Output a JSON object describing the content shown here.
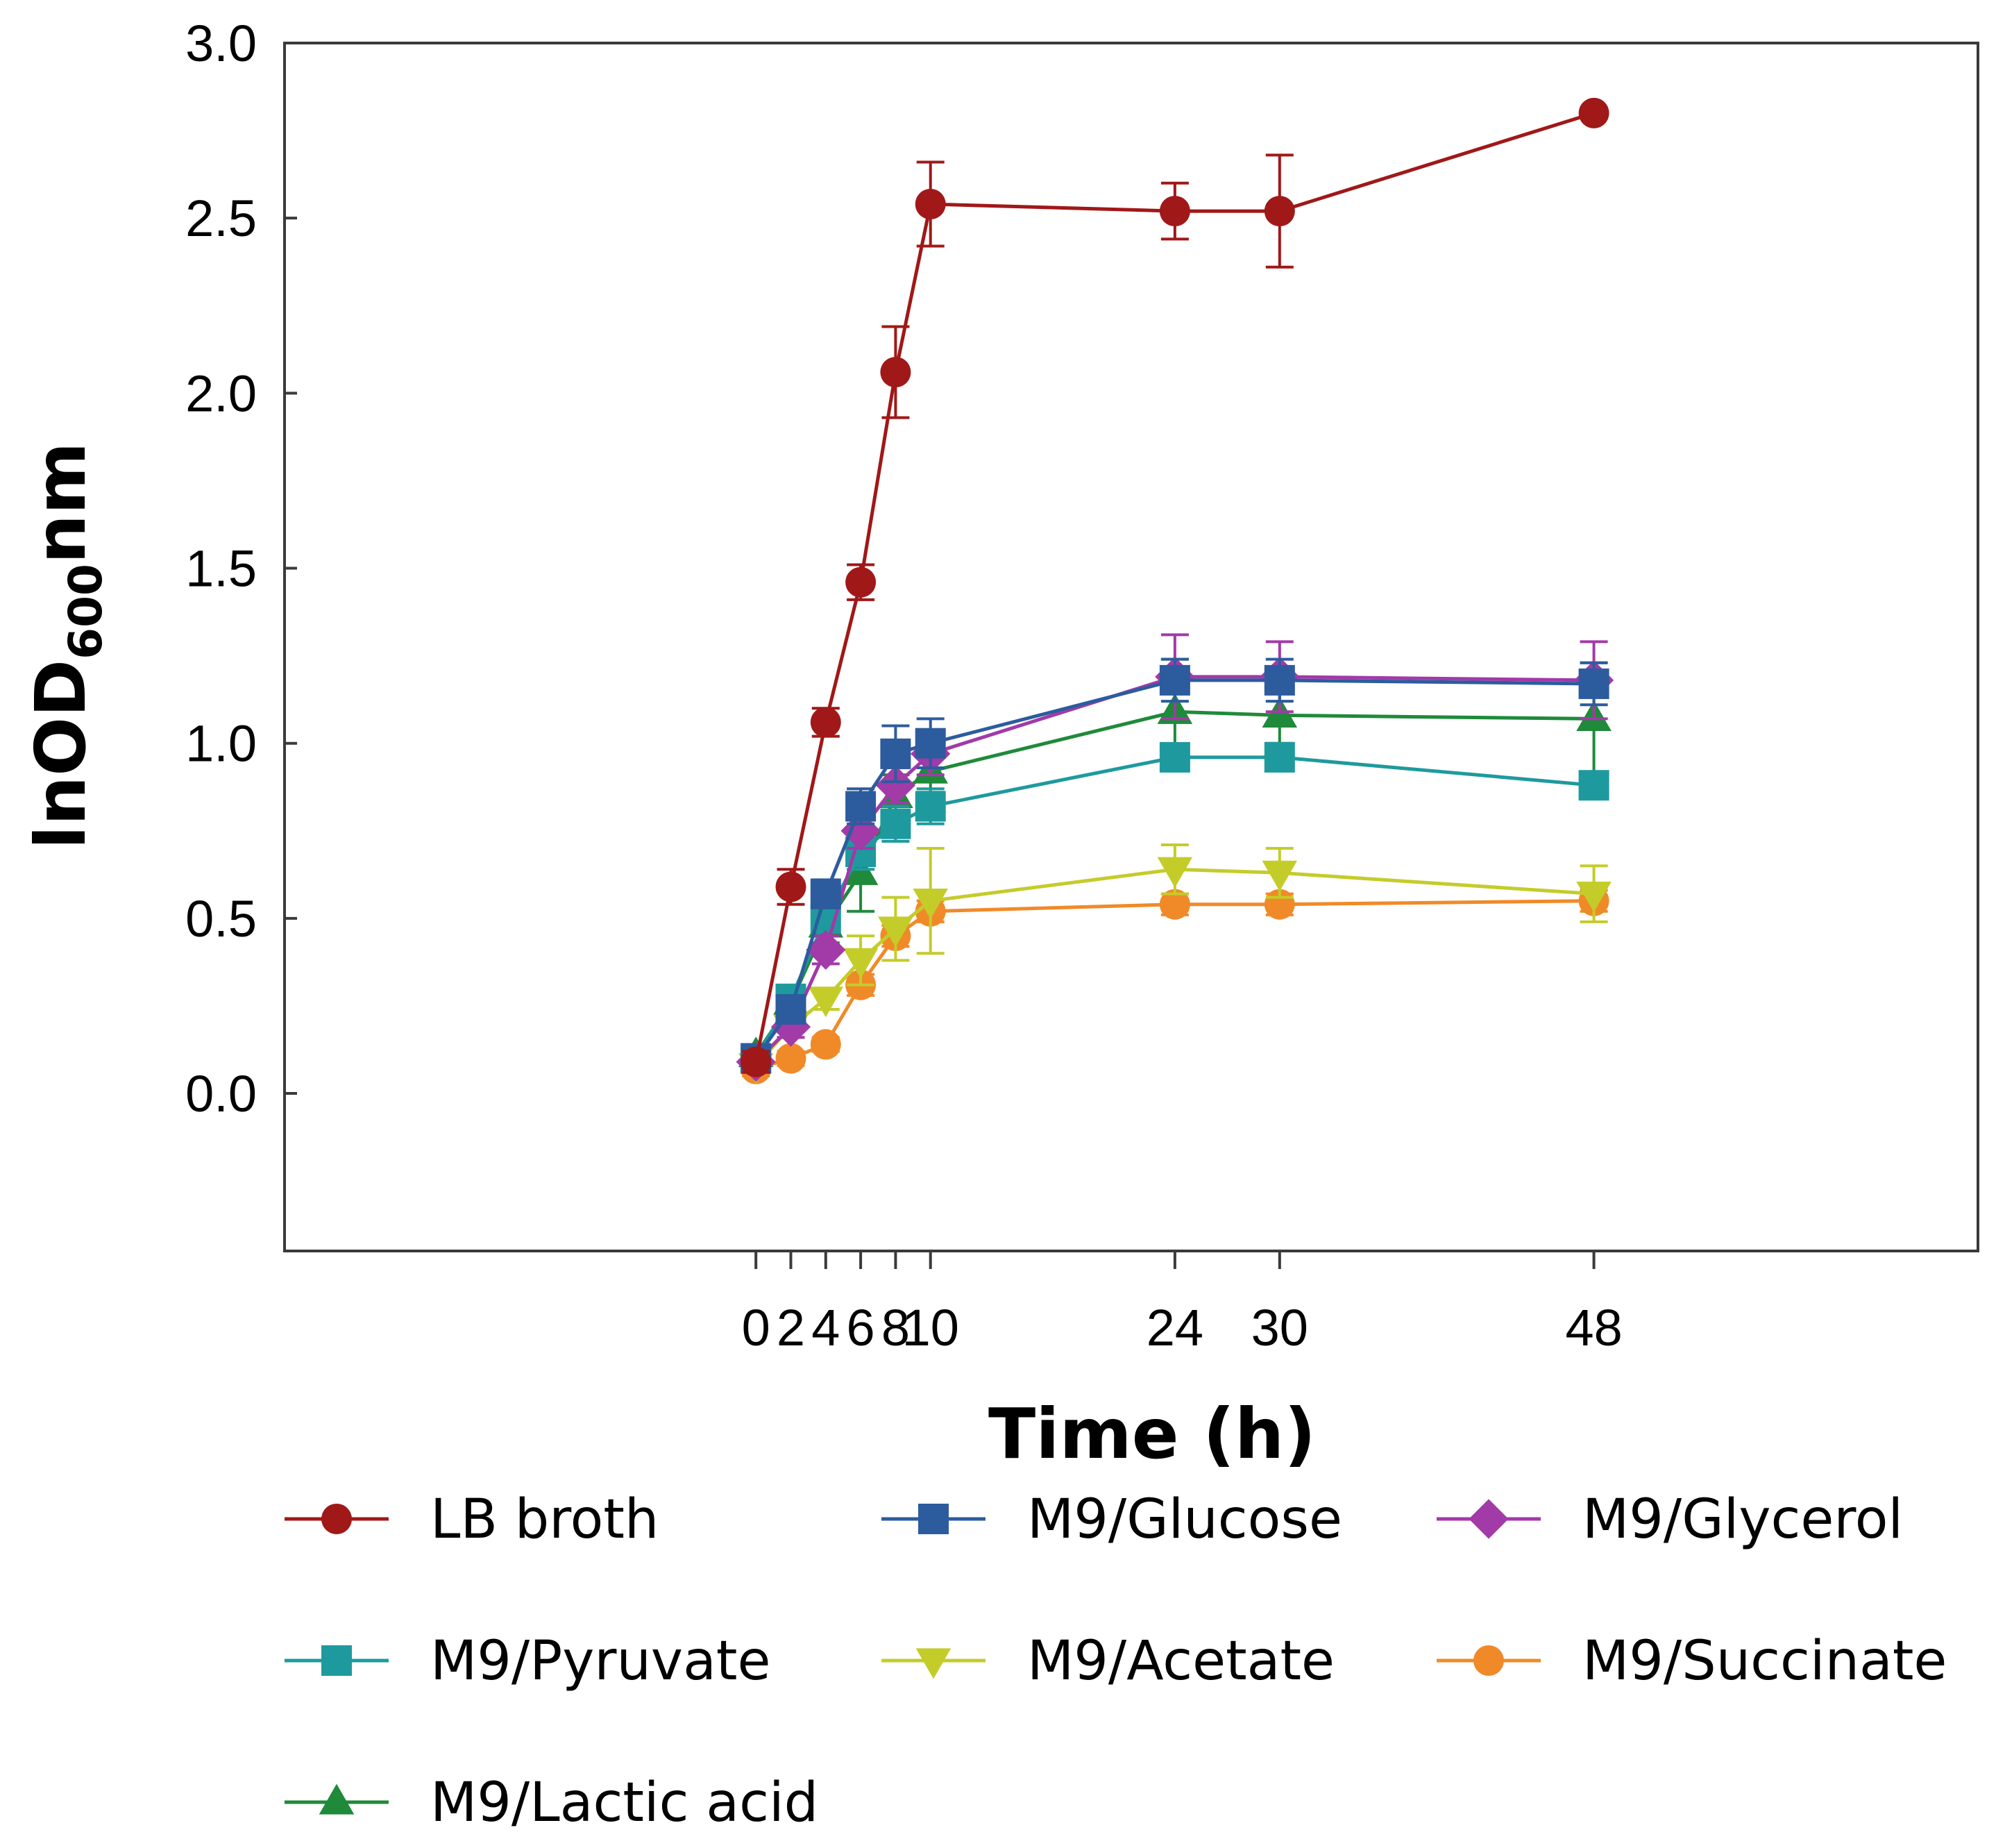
{
  "chart_data": {
    "type": "line",
    "title": "",
    "xlabel": "Time (h)",
    "ylabel": {
      "main": "lnOD",
      "subscript": "600",
      "suffix": "nm"
    },
    "xlim": [
      -27,
      70
    ],
    "ylim": [
      -0.45,
      3.0
    ],
    "x": [
      0,
      2,
      4,
      6,
      8,
      10,
      24,
      30,
      48
    ],
    "xticks": [
      "0",
      "2",
      "4",
      "6",
      "8",
      "10",
      "24",
      "30",
      "48"
    ],
    "yticks": [
      "0.0",
      "0.5",
      "1.0",
      "1.5",
      "2.0",
      "2.5",
      "3.0"
    ],
    "ytick_values": [
      0,
      0.5,
      1.0,
      1.5,
      2.0,
      2.5,
      3.0
    ],
    "grid": false,
    "legend_position": "bottom",
    "series": [
      {
        "name": "LB broth",
        "color": "#a01818",
        "marker": "circle",
        "values": [
          0.09,
          0.59,
          1.06,
          1.46,
          2.06,
          2.54,
          2.52,
          2.52,
          2.8
        ],
        "errors": [
          0.03,
          0.05,
          0.04,
          0.05,
          0.13,
          0.12,
          0.08,
          0.16,
          0.0
        ]
      },
      {
        "name": "M9/Glucose",
        "color": "#2c5c9e",
        "marker": "square",
        "values": [
          0.1,
          0.24,
          0.57,
          0.82,
          0.97,
          1.0,
          1.18,
          1.18,
          1.17
        ],
        "errors": [
          0.02,
          0.03,
          0.04,
          0.05,
          0.08,
          0.07,
          0.06,
          0.06,
          0.06
        ]
      },
      {
        "name": "M9/Glycerol",
        "color": "#a23aa8",
        "marker": "diamond",
        "values": [
          0.09,
          0.19,
          0.41,
          0.75,
          0.88,
          0.97,
          1.19,
          1.19,
          1.18
        ],
        "errors": [
          0.02,
          0.03,
          0.04,
          0.05,
          0.05,
          0.06,
          0.12,
          0.1,
          0.11
        ]
      },
      {
        "name": "M9/Pyruvate",
        "color": "#1e9a9e",
        "marker": "square",
        "values": [
          0.1,
          0.27,
          0.5,
          0.69,
          0.77,
          0.82,
          0.96,
          0.96,
          0.88
        ],
        "errors": [
          0.02,
          0.03,
          0.04,
          0.05,
          0.05,
          0.05,
          0.03,
          0.03,
          0.03
        ]
      },
      {
        "name": "M9/Acetate",
        "color": "#c4cc2a",
        "marker": "triangle-down",
        "values": [
          0.08,
          0.19,
          0.27,
          0.38,
          0.47,
          0.55,
          0.64,
          0.63,
          0.57
        ],
        "errors": [
          0.02,
          0.03,
          0.03,
          0.07,
          0.09,
          0.15,
          0.07,
          0.07,
          0.08
        ]
      },
      {
        "name": "M9/Succinate",
        "color": "#f08a28",
        "marker": "circle",
        "values": [
          0.07,
          0.1,
          0.14,
          0.31,
          0.45,
          0.52,
          0.54,
          0.54,
          0.55
        ],
        "errors": [
          0.02,
          0.02,
          0.02,
          0.03,
          0.03,
          0.03,
          0.03,
          0.03,
          0.03
        ]
      },
      {
        "name": "M9/Lactic acid",
        "color": "#1f8a3a",
        "marker": "triangle-up",
        "values": [
          0.11,
          0.26,
          0.48,
          0.63,
          0.85,
          0.92,
          1.09,
          1.08,
          1.07
        ],
        "errors": [
          0.02,
          0.03,
          0.05,
          0.11,
          0.06,
          0.06,
          0.15,
          0.08,
          0.16
        ]
      }
    ]
  }
}
